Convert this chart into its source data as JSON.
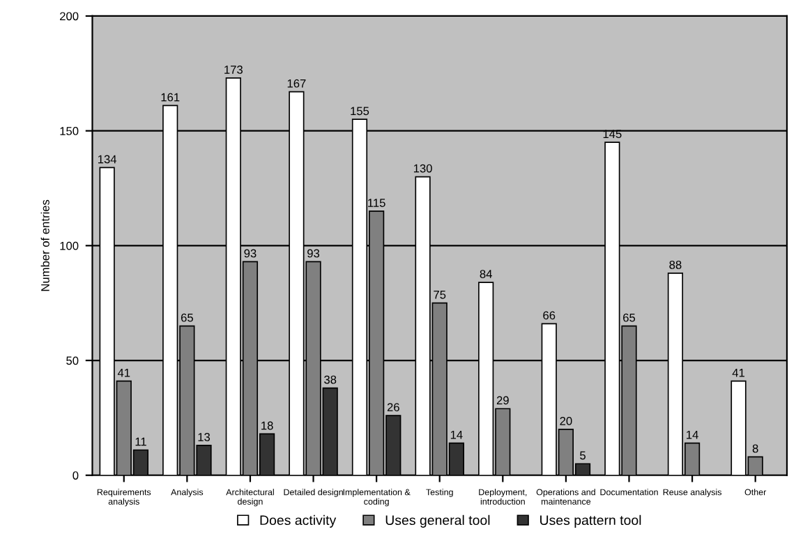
{
  "chart_data": {
    "type": "bar",
    "ylabel": "Number of entries",
    "categories": [
      "Requirements\nanalysis",
      "Analysis",
      "Architectural\ndesign",
      "Detailed design",
      "Implementation &\ncoding",
      "Testing",
      "Deployment,\nintroduction",
      "Operations and\nmaintenance",
      "Documentation",
      "Reuse analysis",
      "Other"
    ],
    "series": [
      {
        "name": "Does activity",
        "color": "#ffffff",
        "values": [
          134,
          161,
          173,
          167,
          155,
          130,
          84,
          66,
          145,
          88,
          41
        ]
      },
      {
        "name": "Uses general tool",
        "color": "#808080",
        "values": [
          41,
          65,
          93,
          93,
          115,
          75,
          29,
          20,
          65,
          14,
          8
        ]
      },
      {
        "name": "Uses pattern tool",
        "color": "#333333",
        "values": [
          11,
          13,
          18,
          38,
          26,
          14,
          null,
          5,
          null,
          null,
          null
        ]
      }
    ],
    "ylim": [
      0,
      200
    ],
    "yticks": [
      0,
      50,
      100,
      150,
      200
    ],
    "grid": "y",
    "legend": "bottom",
    "data_labels": true
  }
}
